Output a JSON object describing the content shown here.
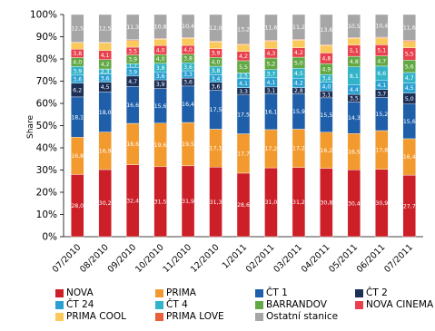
{
  "chart_data": {
    "type": "bar",
    "stacked": true,
    "title": "",
    "xlabel": "",
    "ylabel": "Share",
    "ylim": [
      0,
      100
    ],
    "y_ticks": [
      "0%",
      "10%",
      "20%",
      "30%",
      "40%",
      "50%",
      "60%",
      "70%",
      "80%",
      "90%",
      "100%"
    ],
    "grid": false,
    "legend_position": "bottom",
    "categories": [
      "07/2010",
      "08/2010",
      "09/2010",
      "10/2010",
      "11/2010",
      "12/2010",
      "1/2011",
      "02/2011",
      "03/2011",
      "04/2011",
      "05/2011",
      "06/2011",
      "07/2011"
    ],
    "series": [
      {
        "name": "NOVA",
        "color": "#cc1f27",
        "values": [
          28.0,
          30.2,
          32.4,
          31.5,
          31.9,
          31.3,
          28.6,
          31.0,
          31.2,
          30.8,
          30.4,
          30.9,
          27.7
        ],
        "labels": [
          "28,0",
          "30,2",
          "32,4",
          "31,5",
          "31,9",
          "31,3",
          "28,6",
          "31,0",
          "31,2",
          "30,8",
          "30,4",
          "30,9",
          "27,7"
        ]
      },
      {
        "name": "PRIMA",
        "color": "#f29a2e",
        "values": [
          16.8,
          16.9,
          18.6,
          19.6,
          19.5,
          17.1,
          17.7,
          17.2,
          17.2,
          16.2,
          16.5,
          17.8,
          16.4
        ],
        "labels": [
          "16,8",
          "16,9",
          "18,6",
          "19,6",
          "19,5",
          "17,1",
          "17,7",
          "17,2",
          "17,2",
          "16,2",
          "16,5",
          "17,8",
          "16,4"
        ]
      },
      {
        "name": "ČT 1",
        "color": "#1f5faa",
        "values": [
          18.1,
          18.0,
          16.6,
          15.6,
          16.4,
          17.5,
          17.5,
          16.1,
          15.9,
          15.5,
          14.3,
          15.2,
          15.6
        ],
        "labels": [
          "18,1",
          "18,0",
          "16,6",
          "15,6",
          "16,4",
          "17,5",
          "17,5",
          "16,1",
          "15,9",
          "15,5",
          "14,3",
          "15,2",
          "15,6"
        ]
      },
      {
        "name": "ČT 2",
        "color": "#1b2f57",
        "values": [
          6.2,
          4.5,
          4.7,
          3.9,
          3.6,
          3.6,
          3.3,
          3.1,
          2.8,
          3.1,
          3.5,
          3.7,
          5.0
        ],
        "labels": [
          "6,2",
          "4,5",
          "4,7",
          "3,9",
          "3,6",
          "3,6",
          "3,3",
          "3,1",
          "2,8",
          "3,1",
          "3,5",
          "3,7",
          "5,0"
        ]
      },
      {
        "name": "ČT 24",
        "color": "#2a9fd0",
        "values": [
          3.6,
          3.6,
          3.9,
          3.6,
          3.3,
          3.4,
          4.1,
          4.1,
          4.2,
          4.0,
          4.4,
          4.1,
          4.5
        ],
        "labels": [
          "3,6",
          "3,6",
          "3,9",
          "3,6",
          "3,3",
          "3,4",
          "4,1",
          "4,1",
          "4,2",
          "4,0",
          "4,4",
          "4,1",
          "4,5"
        ]
      },
      {
        "name": "ČT 4",
        "color": "#33b3c8",
        "values": [
          3.9,
          2.3,
          1.7,
          3.8,
          3.6,
          3.8,
          2.5,
          3.7,
          4.5,
          3.4,
          8.1,
          6.6,
          4.7
        ],
        "labels": [
          "3,9",
          "2,3",
          "1,7",
          "3,8",
          "3,6",
          "3,8",
          "2,5",
          "3,7",
          "4,5",
          "3,4",
          "8,1",
          "6,6",
          "4,7"
        ]
      },
      {
        "name": "BARRANDOV",
        "color": "#62a844",
        "values": [
          4.0,
          4.2,
          3.9,
          4.0,
          3.8,
          4.0,
          5.5,
          5.2,
          5.0,
          4.9,
          4.8,
          4.7,
          5.6
        ],
        "labels": [
          "4,0",
          "4,2",
          "3,9",
          "4,0",
          "3,8",
          "4,0",
          "5,5",
          "5,2",
          "5,0",
          "4,9",
          "4,8",
          "4,7",
          "5,6"
        ]
      },
      {
        "name": "NOVA CINEMA",
        "color": "#e8414d",
        "values": [
          3.8,
          4.1,
          3.5,
          4.0,
          4.0,
          3.9,
          4.2,
          4.3,
          4.2,
          4.8,
          5.1,
          5.1,
          5.5
        ],
        "labels": [
          "3,8",
          "4,1",
          "3,5",
          "4,0",
          "4,0",
          "3,9",
          "4,2",
          "4,3",
          "4,2",
          "4,8",
          "5,1",
          "5,1",
          "5,5"
        ]
      },
      {
        "name": "PRIMA COOL",
        "color": "#fac95c",
        "values": [
          3.0,
          3.4,
          3.0,
          2.9,
          3.2,
          3.1,
          3.0,
          3.3,
          3.5,
          3.4,
          3.1,
          3.1,
          2.9
        ],
        "labels": [
          "",
          "",
          "",
          "",
          "",
          "",
          "",
          "",
          "",
          "",
          "",
          "",
          ""
        ]
      },
      {
        "name": "PRIMA LOVE",
        "color": "#e8603a",
        "values": [
          0.1,
          0.3,
          0.4,
          0.3,
          0.3,
          0.3,
          0.4,
          0.4,
          0.3,
          0.3,
          0.3,
          0.4,
          0.5
        ],
        "labels": [
          "",
          "",
          "",
          "",
          "",
          "",
          "",
          "",
          "",
          "",
          "",
          "",
          ""
        ]
      },
      {
        "name": "Ostatní stanice",
        "color": "#a6a6a6",
        "values": [
          12.5,
          12.5,
          11.3,
          10.8,
          10.4,
          12.0,
          13.2,
          11.6,
          11.2,
          13.6,
          10.5,
          10.4,
          11.6
        ],
        "labels": [
          "12,5",
          "12,5",
          "11,3",
          "10,8",
          "10,4",
          "12,0",
          "13,2",
          "11,6",
          "11,2",
          "13,6",
          "10,5",
          "10,4",
          "11,6"
        ]
      }
    ]
  }
}
